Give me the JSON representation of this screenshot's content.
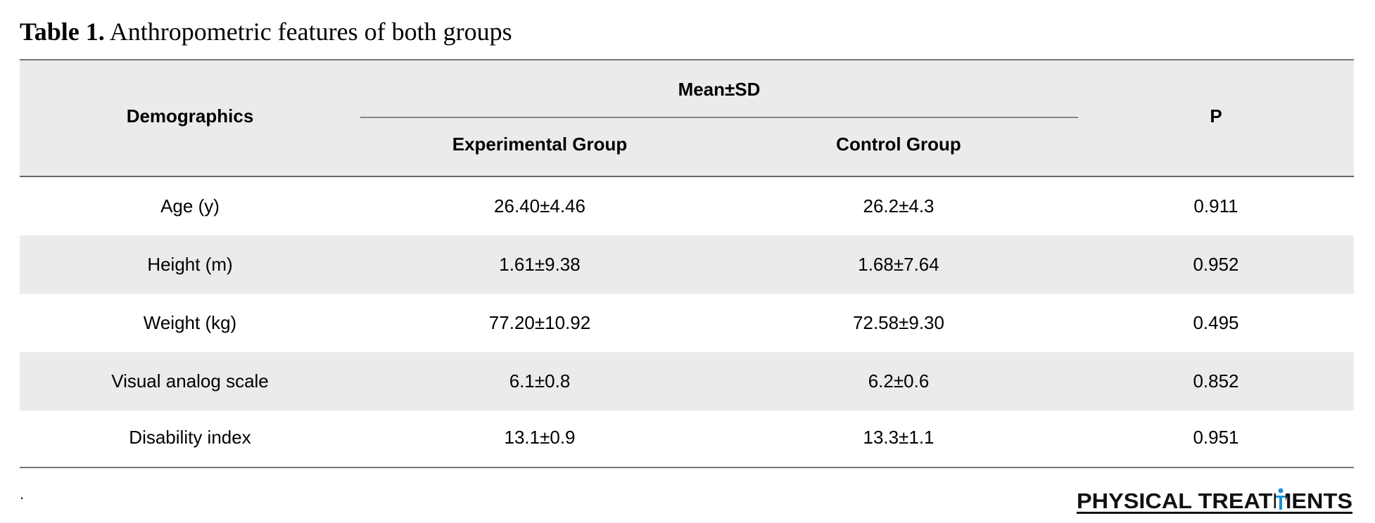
{
  "caption": {
    "label": "Table 1.",
    "title": "Anthropometric features of both groups"
  },
  "table": {
    "header": {
      "demographics": "Demographics",
      "mean_sd": "Mean±SD",
      "experimental": "Experimental Group",
      "control": "Control Group",
      "p": "P"
    },
    "rows": [
      {
        "label": "Age (y)",
        "experimental": "26.40±4.46",
        "control": "26.2±4.3",
        "p": "0.911"
      },
      {
        "label": "Height (m)",
        "experimental": "1.61±9.38",
        "control": "1.68±7.64",
        "p": "0.952"
      },
      {
        "label": "Weight (kg)",
        "experimental": "77.20±10.92",
        "control": "72.58±9.30",
        "p": "0.495"
      },
      {
        "label": "Visual analog scale",
        "experimental": "6.1±0.8",
        "control": "6.2±0.6",
        "p": "0.852"
      },
      {
        "label": "Disability index",
        "experimental": "13.1±0.9",
        "control": "13.3±1.1",
        "p": "0.951"
      }
    ]
  },
  "footnote": ".",
  "logo": {
    "text": "PHYSICAL TREATMENTS",
    "accent_color": "#1a8fd6"
  },
  "colors": {
    "shade": "#ebebeb",
    "rule": "#777777"
  }
}
